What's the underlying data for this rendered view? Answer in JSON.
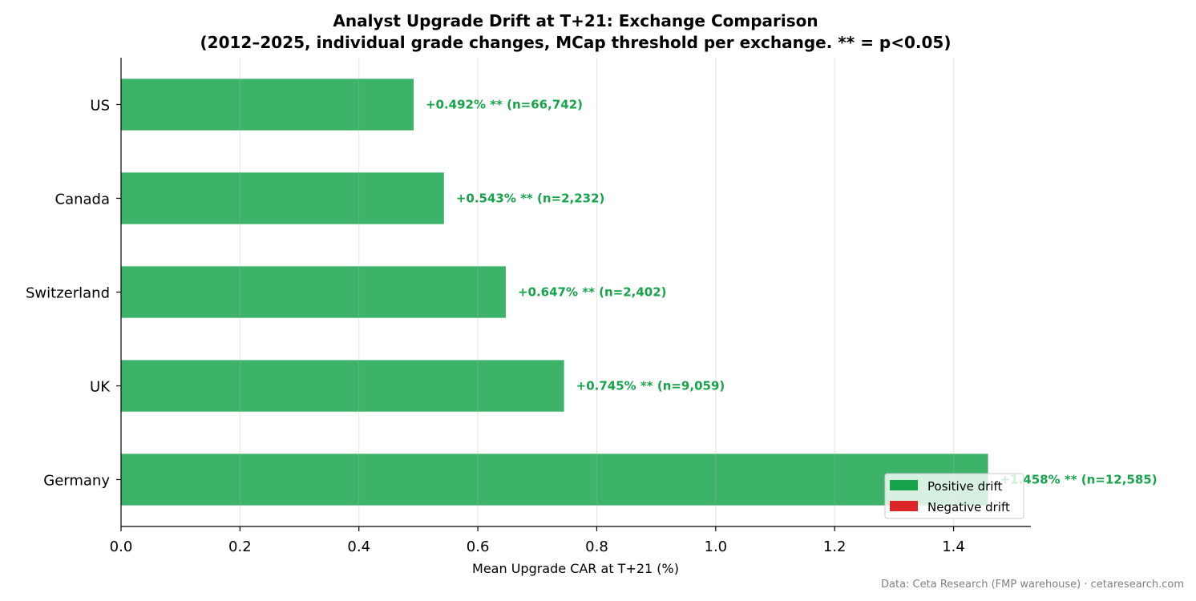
{
  "chart_data": {
    "type": "bar",
    "orientation": "horizontal",
    "title": "Analyst Upgrade Drift at T+21: Exchange Comparison",
    "subtitle": "(2012–2025, individual grade changes, MCap threshold per exchange. ** = p<0.05)",
    "xlabel": "Mean Upgrade CAR at T+21 (%)",
    "ylabel": "",
    "categories": [
      "US",
      "Canada",
      "Switzerland",
      "UK",
      "Germany"
    ],
    "values": [
      0.492,
      0.543,
      0.647,
      0.745,
      1.458
    ],
    "data_labels": [
      "+0.492% **  (n=66,742)",
      "+0.543% **  (n=2,232)",
      "+0.647% **  (n=2,402)",
      "+0.745% **  (n=9,059)",
      "+1.458% **  (n=12,585)"
    ],
    "xlim": [
      0,
      1.53
    ],
    "xticks": [
      "0.0",
      "0.2",
      "0.4",
      "0.6",
      "0.8",
      "1.0",
      "1.2",
      "1.4"
    ],
    "grid": "x",
    "legend": {
      "placement": "bottom-right",
      "entries": [
        {
          "label": "Positive drift",
          "color": "#16a34a"
        },
        {
          "label": "Negative drift",
          "color": "#dc2626"
        }
      ]
    },
    "colors": {
      "bar": "#16a34a",
      "label_text": "#16a34a"
    }
  },
  "footer": "Data: Ceta Research (FMP warehouse) · cetaresearch.com"
}
